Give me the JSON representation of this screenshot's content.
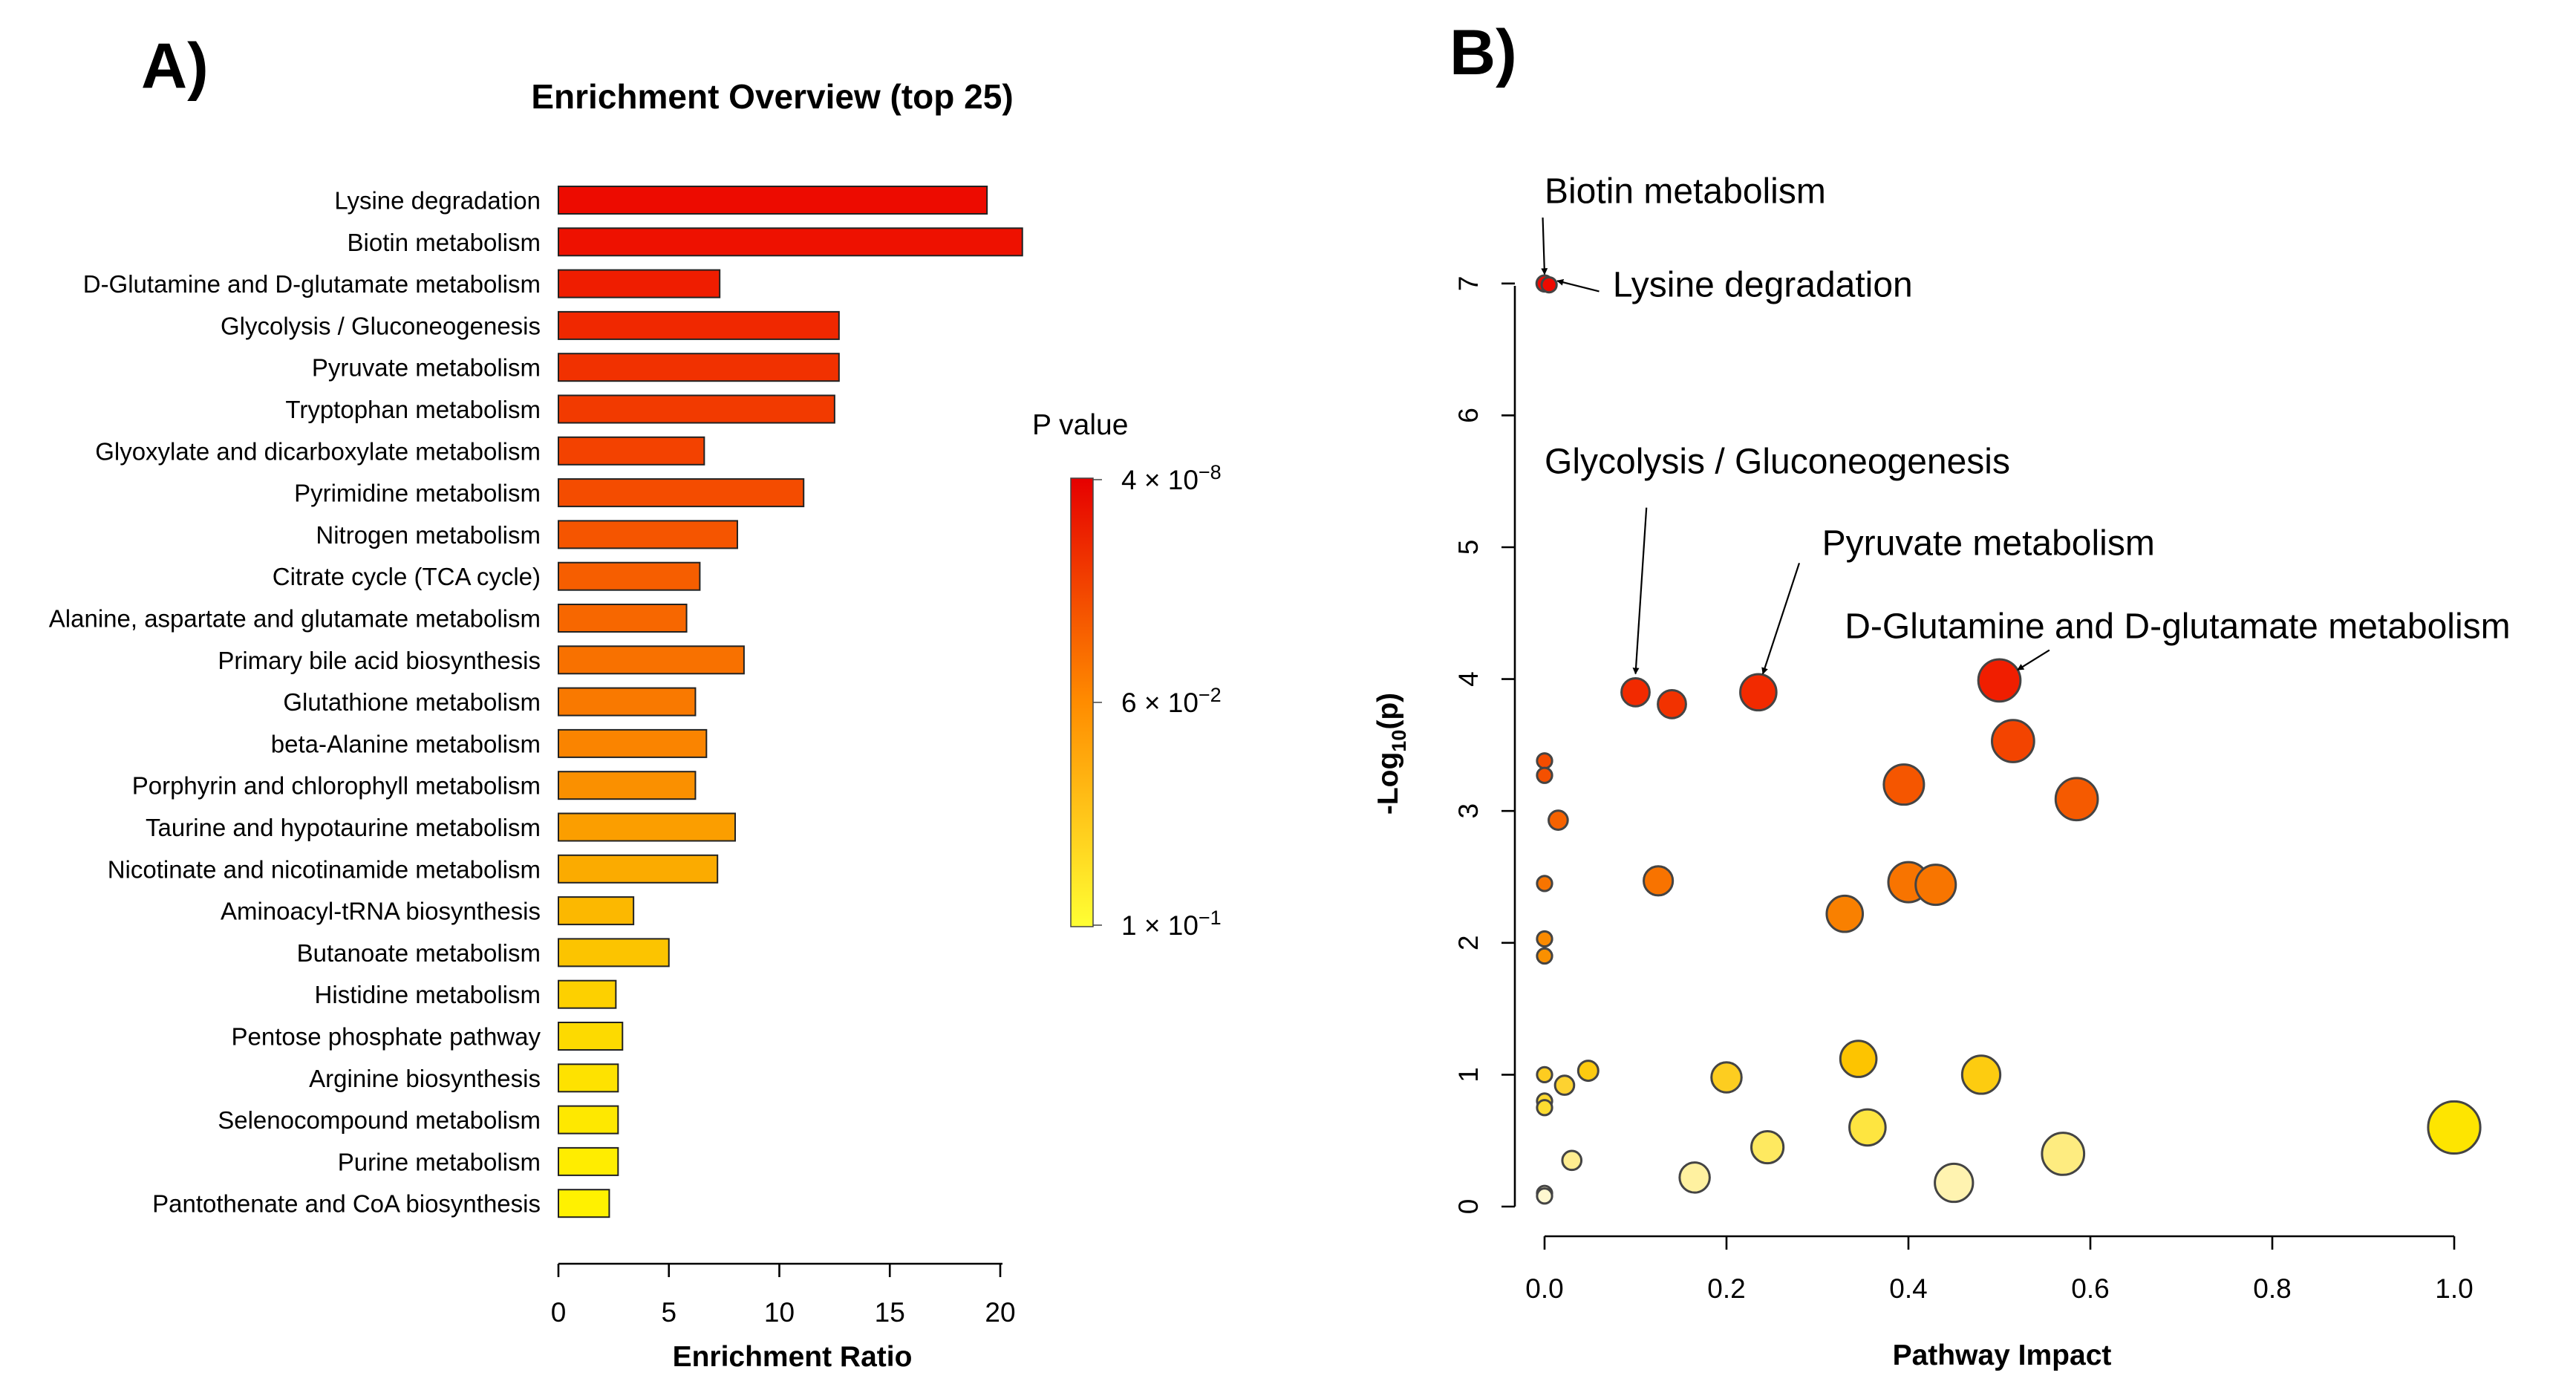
{
  "panels": {
    "a_label": "A)",
    "b_label": "B)"
  },
  "colors": {
    "high_p": "#ffff33",
    "mid_p": "#ff8c00",
    "low_p": "#e60000",
    "stroke": "#444444"
  },
  "chart_data": [
    {
      "type": "bar",
      "orientation": "horizontal",
      "title": "Enrichment Overview (top 25)",
      "xlabel": "Enrichment Ratio",
      "ylabel": "",
      "xlim": [
        0,
        21
      ],
      "xticks": [
        0,
        5,
        10,
        15,
        20
      ],
      "categories": [
        "Lysine degradation",
        "Biotin metabolism",
        "D-Glutamine and D-glutamate metabolism",
        "Glycolysis / Gluconeogenesis",
        "Pyruvate metabolism",
        "Tryptophan metabolism",
        "Glyoxylate and dicarboxylate metabolism",
        "Pyrimidine metabolism",
        "Nitrogen metabolism",
        "Citrate cycle (TCA cycle)",
        "Alanine, aspartate and glutamate metabolism",
        "Primary bile acid biosynthesis",
        "Glutathione metabolism",
        "beta-Alanine metabolism",
        "Porphyrin and chlorophyll metabolism",
        "Taurine and hypotaurine metabolism",
        "Nicotinate and nicotinamide metabolism",
        "Aminoacyl-tRNA biosynthesis",
        "Butanoate metabolism",
        "Histidine metabolism",
        "Pentose phosphate pathway",
        "Arginine biosynthesis",
        "Selenocompound metabolism",
        "Purine metabolism",
        "Pantothenate and CoA biosynthesis"
      ],
      "values": [
        19.4,
        21.0,
        7.3,
        12.7,
        12.7,
        12.5,
        6.6,
        11.1,
        8.1,
        6.4,
        5.8,
        8.4,
        6.2,
        6.7,
        6.2,
        8.0,
        7.2,
        3.4,
        5.0,
        2.6,
        2.9,
        2.7,
        2.7,
        2.7,
        2.3
      ],
      "bar_colors": [
        "#ed0b00",
        "#ee1100",
        "#ef1d00",
        "#f02800",
        "#f13100",
        "#f23a00",
        "#f34200",
        "#f44c00",
        "#f55500",
        "#f65e00",
        "#f76700",
        "#f87100",
        "#f97900",
        "#fa8400",
        "#fa9000",
        "#fb9e00",
        "#fbab00",
        "#fcb800",
        "#fcc400",
        "#fdd000",
        "#fdda00",
        "#fee200",
        "#fee800",
        "#ffed00",
        "#fff100"
      ],
      "legend": {
        "title": "P value",
        "ticks": [
          {
            "base": "4",
            "times": "×",
            "ten": "10",
            "exp": "−8"
          },
          {
            "base": "6",
            "times": "×",
            "ten": "10",
            "exp": "−2"
          },
          {
            "base": "1",
            "times": "×",
            "ten": "10",
            "exp": "−1"
          }
        ]
      }
    },
    {
      "type": "scatter",
      "title": "",
      "xlabel": "Pathway Impact",
      "ylabel": {
        "prefix": "-Log",
        "sub": "10",
        "suffix": "(p)"
      },
      "xlim": [
        0,
        1
      ],
      "ylim": [
        0,
        7
      ],
      "xticks": [
        "0.0",
        "0.2",
        "0.4",
        "0.6",
        "0.8",
        "1.0"
      ],
      "yticks": [
        "0",
        "1",
        "2",
        "3",
        "4",
        "5",
        "6",
        "7"
      ],
      "points": [
        {
          "x": 0.0,
          "y": 7.0,
          "size": 0.8,
          "color": "#ee0a00"
        },
        {
          "x": 0.005,
          "y": 6.99,
          "size": 0.75,
          "color": "#ee0a00"
        },
        {
          "x": 0.1,
          "y": 3.9,
          "size": 1.4,
          "color": "#f22a00"
        },
        {
          "x": 0.14,
          "y": 3.81,
          "size": 1.4,
          "color": "#f23200"
        },
        {
          "x": 0.235,
          "y": 3.9,
          "size": 1.8,
          "color": "#f22a00"
        },
        {
          "x": 0.5,
          "y": 3.99,
          "size": 2.1,
          "color": "#f01e00"
        },
        {
          "x": 0.515,
          "y": 3.53,
          "size": 2.1,
          "color": "#f34400"
        },
        {
          "x": 0.0,
          "y": 3.38,
          "size": 0.75,
          "color": "#f44c00"
        },
        {
          "x": 0.0,
          "y": 3.27,
          "size": 0.75,
          "color": "#f45000"
        },
        {
          "x": 0.395,
          "y": 3.2,
          "size": 2.0,
          "color": "#f55600"
        },
        {
          "x": 0.585,
          "y": 3.09,
          "size": 2.1,
          "color": "#f55a00"
        },
        {
          "x": 0.015,
          "y": 2.93,
          "size": 0.95,
          "color": "#f66200"
        },
        {
          "x": 0.125,
          "y": 2.47,
          "size": 1.45,
          "color": "#f87300"
        },
        {
          "x": 0.0,
          "y": 2.45,
          "size": 0.75,
          "color": "#f87400"
        },
        {
          "x": 0.4,
          "y": 2.46,
          "size": 2.0,
          "color": "#f87400"
        },
        {
          "x": 0.43,
          "y": 2.44,
          "size": 2.0,
          "color": "#f87500"
        },
        {
          "x": 0.33,
          "y": 2.22,
          "size": 1.8,
          "color": "#f98000"
        },
        {
          "x": 0.0,
          "y": 2.03,
          "size": 0.75,
          "color": "#fa8a00"
        },
        {
          "x": 0.0,
          "y": 1.9,
          "size": 0.75,
          "color": "#fa9000"
        },
        {
          "x": 0.345,
          "y": 1.12,
          "size": 1.8,
          "color": "#fdc400"
        },
        {
          "x": 0.048,
          "y": 1.03,
          "size": 1.0,
          "color": "#fdca10"
        },
        {
          "x": 0.0,
          "y": 1.0,
          "size": 0.75,
          "color": "#fdcc20"
        },
        {
          "x": 0.48,
          "y": 1.0,
          "size": 1.9,
          "color": "#fdcc10"
        },
        {
          "x": 0.2,
          "y": 0.98,
          "size": 1.5,
          "color": "#fdcd20"
        },
        {
          "x": 0.022,
          "y": 0.92,
          "size": 0.95,
          "color": "#fdd230"
        },
        {
          "x": 0.0,
          "y": 0.8,
          "size": 0.75,
          "color": "#fdd930"
        },
        {
          "x": 0.0,
          "y": 0.75,
          "size": 0.75,
          "color": "#fddc30"
        },
        {
          "x": 0.355,
          "y": 0.6,
          "size": 1.8,
          "color": "#fee540"
        },
        {
          "x": 1.0,
          "y": 0.6,
          "size": 2.6,
          "color": "#fee500"
        },
        {
          "x": 0.245,
          "y": 0.45,
          "size": 1.6,
          "color": "#fee960"
        },
        {
          "x": 0.57,
          "y": 0.4,
          "size": 2.1,
          "color": "#feec80"
        },
        {
          "x": 0.03,
          "y": 0.35,
          "size": 0.95,
          "color": "#ffed90"
        },
        {
          "x": 0.165,
          "y": 0.22,
          "size": 1.5,
          "color": "#fff1a0"
        },
        {
          "x": 0.45,
          "y": 0.18,
          "size": 1.9,
          "color": "#fff3b0"
        },
        {
          "x": 0.0,
          "y": 0.1,
          "size": 0.75,
          "color": "#fff8d0"
        },
        {
          "x": 0.0,
          "y": 0.08,
          "size": 0.75,
          "color": "#fff8d0"
        }
      ],
      "annotations": [
        {
          "text": "Biotin metabolism",
          "px": 0.0,
          "py": 7.0,
          "tx": 0.0,
          "ty": 7.7,
          "arrow": [
            -0.002,
            7.5,
            0.0,
            7.07
          ]
        },
        {
          "text": "Lysine degradation",
          "px": 0.005,
          "py": 6.99,
          "tx": 0.075,
          "ty": 6.99,
          "arrow": [
            0.06,
            6.94,
            0.014,
            7.02
          ]
        },
        {
          "text": "Glycolysis / Gluconeogenesis",
          "px": 0.1,
          "py": 3.9,
          "tx": 0.0,
          "ty": 5.65,
          "arrow": [
            0.112,
            5.3,
            0.1,
            4.04
          ]
        },
        {
          "text": "Pyruvate metabolism",
          "px": 0.235,
          "py": 3.9,
          "tx": 0.305,
          "ty": 5.03,
          "arrow": [
            0.28,
            4.88,
            0.24,
            4.04
          ]
        },
        {
          "text": "D-Glutamine and D-glutamate metabolism",
          "px": 0.5,
          "py": 3.99,
          "tx": 0.33,
          "ty": 4.4,
          "arrow": [
            0.555,
            4.22,
            0.52,
            4.07
          ]
        }
      ]
    }
  ]
}
